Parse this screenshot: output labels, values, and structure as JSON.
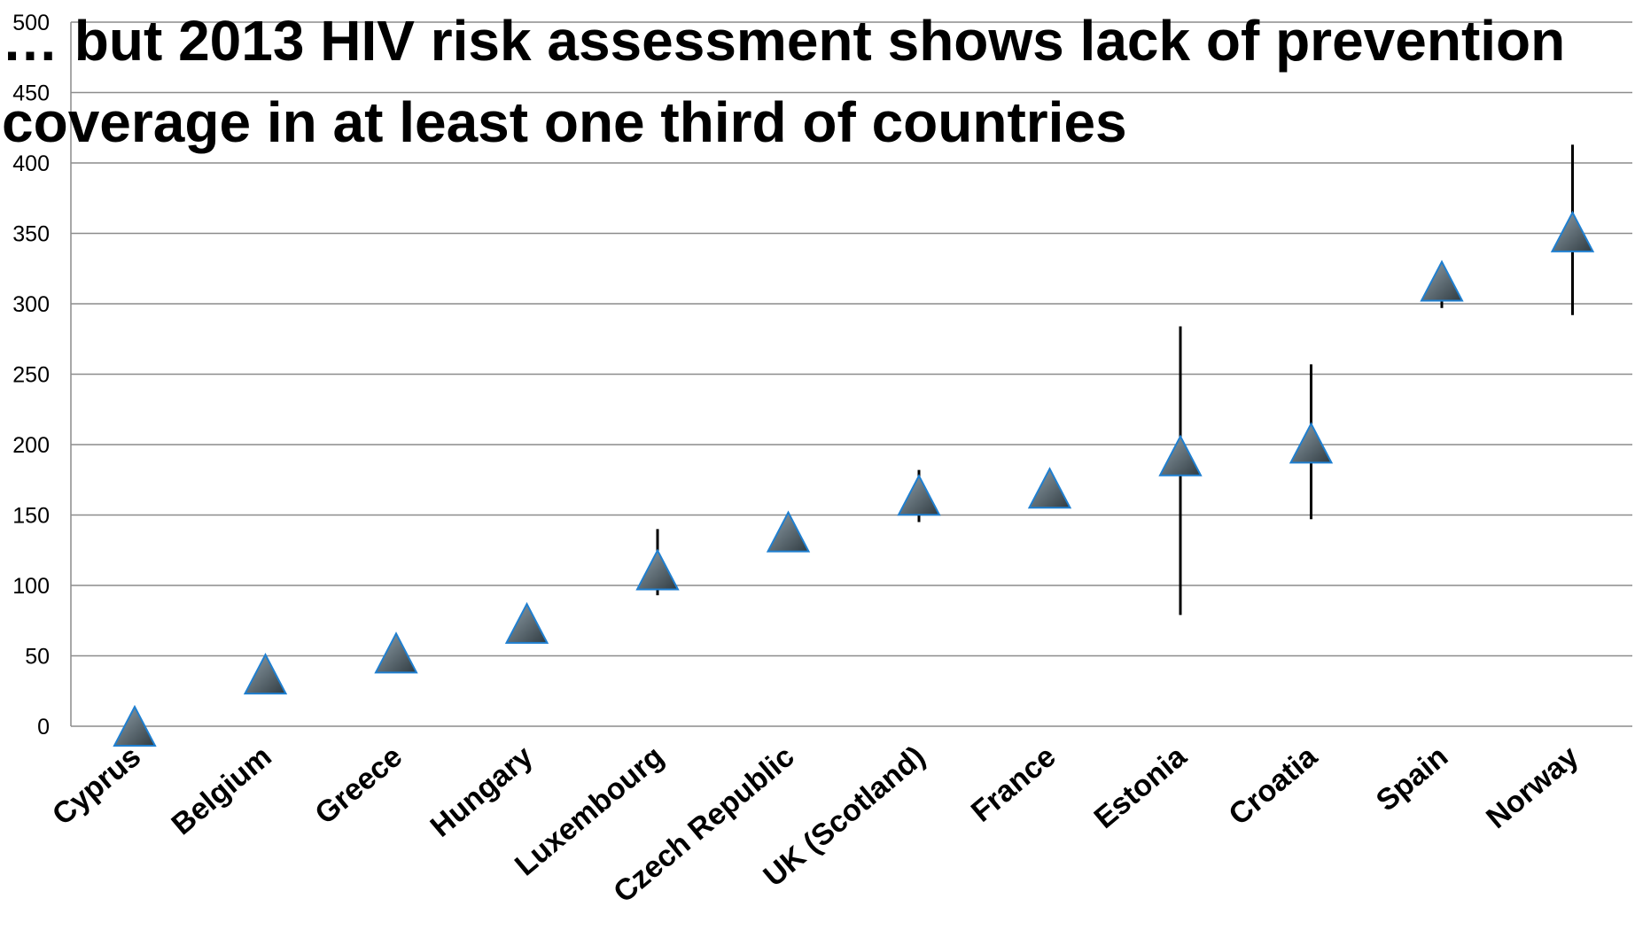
{
  "title_lines": [
    "… but 2013 HIV risk assessment shows lack of prevention",
    "coverage in at least one third of countries"
  ],
  "chart_data": {
    "type": "scatter",
    "title": "… but 2013 HIV risk assessment shows lack of prevention coverage in at least one third of countries",
    "xlabel": "",
    "ylabel": "",
    "ylim": [
      0,
      500
    ],
    "yticks": [
      0,
      50,
      100,
      150,
      200,
      250,
      300,
      350,
      400,
      450,
      500
    ],
    "grid": true,
    "legend": "none",
    "marker": "triangle",
    "categories": [
      "Cyprus",
      "Belgium",
      "Greece",
      "Hungary",
      "Luxembourg",
      "Czech Republic",
      "UK (Scotland)",
      "France",
      "Estonia",
      "Croatia",
      "Spain",
      "Norway"
    ],
    "series": [
      {
        "values": [
          0,
          37,
          52,
          73,
          111,
          138,
          164,
          169,
          192,
          201,
          316,
          351
        ],
        "error_low": [
          null,
          null,
          null,
          null,
          93,
          null,
          145,
          null,
          79,
          147,
          297,
          292
        ],
        "error_high": [
          null,
          null,
          null,
          null,
          140,
          null,
          182,
          null,
          284,
          257,
          318,
          413
        ]
      }
    ],
    "colors": {
      "marker_fill_light": "#93a3ad",
      "marker_fill_dark": "#2f3a40",
      "marker_edge": "#1f7fd0",
      "error_bar": "#000000",
      "gridline": "#8c8c8c"
    }
  }
}
